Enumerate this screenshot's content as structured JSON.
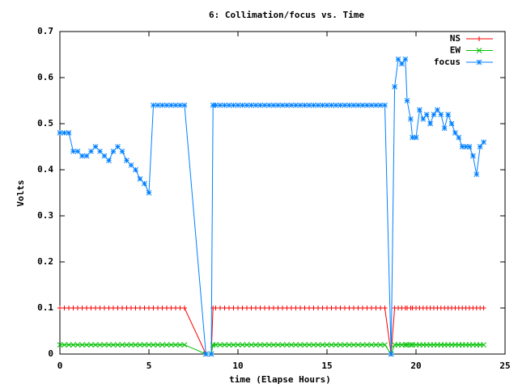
{
  "chart_data": {
    "type": "line",
    "title": "6: Collimation/focus vs. Time",
    "x_label": "time (Elapse Hours)",
    "y_label": "Volts",
    "xlim": [
      0,
      25
    ],
    "ylim": [
      0,
      0.7
    ],
    "xticks": [
      0,
      5,
      10,
      15,
      20,
      25
    ],
    "yticks": [
      0,
      0.1,
      0.2,
      0.3,
      0.4,
      0.5,
      0.6,
      0.7
    ],
    "legend": "top-right",
    "x": [
      0,
      0.25,
      0.5,
      0.75,
      1,
      1.25,
      1.5,
      1.75,
      2,
      2.25,
      2.5,
      2.75,
      3,
      3.25,
      3.5,
      3.75,
      4,
      4.25,
      4.5,
      4.75,
      5,
      5.25,
      5.5,
      5.75,
      6,
      6.25,
      6.5,
      6.75,
      7,
      8.2,
      8.5,
      8.6,
      8.75,
      9,
      9.25,
      9.5,
      9.75,
      10,
      10.25,
      10.5,
      10.75,
      11,
      11.25,
      11.5,
      11.75,
      12,
      12.25,
      12.5,
      12.75,
      13,
      13.25,
      13.5,
      13.75,
      14,
      14.25,
      14.5,
      14.75,
      15,
      15.25,
      15.5,
      15.75,
      16,
      16.25,
      16.5,
      16.75,
      17,
      17.25,
      17.5,
      17.75,
      18,
      18.25,
      18.6,
      18.8,
      19,
      19.2,
      19.4,
      19.5,
      19.7,
      19.8,
      20,
      20.2,
      20.4,
      20.6,
      20.8,
      21,
      21.2,
      21.4,
      21.6,
      21.8,
      22,
      22.2,
      22.4,
      22.6,
      22.8,
      23,
      23.2,
      23.4,
      23.6,
      23.8
    ],
    "series": [
      {
        "name": "NS",
        "color": "#ff0000",
        "marker": "plus",
        "values": [
          0.1,
          0.1,
          0.1,
          0.1,
          0.1,
          0.1,
          0.1,
          0.1,
          0.1,
          0.1,
          0.1,
          0.1,
          0.1,
          0.1,
          0.1,
          0.1,
          0.1,
          0.1,
          0.1,
          0.1,
          0.1,
          0.1,
          0.1,
          0.1,
          0.1,
          0.1,
          0.1,
          0.1,
          0.1,
          0,
          0,
          0.1,
          0.1,
          0.1,
          0.1,
          0.1,
          0.1,
          0.1,
          0.1,
          0.1,
          0.1,
          0.1,
          0.1,
          0.1,
          0.1,
          0.1,
          0.1,
          0.1,
          0.1,
          0.1,
          0.1,
          0.1,
          0.1,
          0.1,
          0.1,
          0.1,
          0.1,
          0.1,
          0.1,
          0.1,
          0.1,
          0.1,
          0.1,
          0.1,
          0.1,
          0.1,
          0.1,
          0.1,
          0.1,
          0.1,
          0.1,
          0,
          0.1,
          0.1,
          0.1,
          0.1,
          0.1,
          0.1,
          0.1,
          0.1,
          0.1,
          0.1,
          0.1,
          0.1,
          0.1,
          0.1,
          0.1,
          0.1,
          0.1,
          0.1,
          0.1,
          0.1,
          0.1,
          0.1,
          0.1,
          0.1,
          0.1,
          0.1,
          0.1
        ]
      },
      {
        "name": "EW",
        "color": "#00c000",
        "marker": "cross",
        "values": [
          0.02,
          0.02,
          0.02,
          0.02,
          0.02,
          0.02,
          0.02,
          0.02,
          0.02,
          0.02,
          0.02,
          0.02,
          0.02,
          0.02,
          0.02,
          0.02,
          0.02,
          0.02,
          0.02,
          0.02,
          0.02,
          0.02,
          0.02,
          0.02,
          0.02,
          0.02,
          0.02,
          0.02,
          0.02,
          0,
          0,
          0.02,
          0.02,
          0.02,
          0.02,
          0.02,
          0.02,
          0.02,
          0.02,
          0.02,
          0.02,
          0.02,
          0.02,
          0.02,
          0.02,
          0.02,
          0.02,
          0.02,
          0.02,
          0.02,
          0.02,
          0.02,
          0.02,
          0.02,
          0.02,
          0.02,
          0.02,
          0.02,
          0.02,
          0.02,
          0.02,
          0.02,
          0.02,
          0.02,
          0.02,
          0.02,
          0.02,
          0.02,
          0.02,
          0.02,
          0.02,
          0,
          0.02,
          0.02,
          0.02,
          0.02,
          0.02,
          0.02,
          0.02,
          0.02,
          0.02,
          0.02,
          0.02,
          0.02,
          0.02,
          0.02,
          0.02,
          0.02,
          0.02,
          0.02,
          0.02,
          0.02,
          0.02,
          0.02,
          0.02,
          0.02,
          0.02,
          0.02,
          0.02
        ]
      },
      {
        "name": "focus",
        "color": "#0080ff",
        "marker": "star",
        "values": [
          0.48,
          0.48,
          0.48,
          0.44,
          0.44,
          0.43,
          0.43,
          0.44,
          0.45,
          0.44,
          0.43,
          0.42,
          0.44,
          0.45,
          0.44,
          0.42,
          0.41,
          0.4,
          0.38,
          0.37,
          0.35,
          0.54,
          0.54,
          0.54,
          0.54,
          0.54,
          0.54,
          0.54,
          0.54,
          0,
          0,
          0.54,
          0.54,
          0.54,
          0.54,
          0.54,
          0.54,
          0.54,
          0.54,
          0.54,
          0.54,
          0.54,
          0.54,
          0.54,
          0.54,
          0.54,
          0.54,
          0.54,
          0.54,
          0.54,
          0.54,
          0.54,
          0.54,
          0.54,
          0.54,
          0.54,
          0.54,
          0.54,
          0.54,
          0.54,
          0.54,
          0.54,
          0.54,
          0.54,
          0.54,
          0.54,
          0.54,
          0.54,
          0.54,
          0.54,
          0.54,
          0,
          0.58,
          0.64,
          0.63,
          0.64,
          0.55,
          0.51,
          0.47,
          0.47,
          0.53,
          0.51,
          0.52,
          0.5,
          0.52,
          0.53,
          0.52,
          0.49,
          0.52,
          0.5,
          0.48,
          0.47,
          0.45,
          0.45,
          0.45,
          0.43,
          0.39,
          0.45,
          0.46
        ]
      }
    ]
  }
}
